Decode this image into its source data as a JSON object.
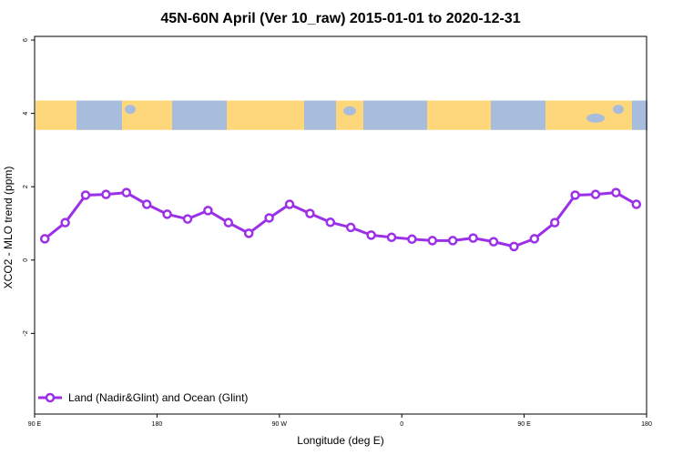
{
  "chart_data": {
    "type": "line",
    "title": "45N-60N April (Ver 10_raw)   2015-01-01 to 2020-12-31",
    "xlabel": "Longitude (deg E)",
    "ylabel": "XCO2 - MLO trend (ppm)",
    "x_ticks": [
      "90 E",
      "180",
      "90 W",
      "0",
      "90 E",
      "180"
    ],
    "x_tick_values": [
      90,
      180,
      270,
      360,
      450,
      540
    ],
    "xlim": [
      90,
      540
    ],
    "y_ticks": [
      "-2",
      "0",
      "2",
      "4",
      "6"
    ],
    "y_tick_values": [
      -2,
      0,
      2,
      4,
      6
    ],
    "ylim": [
      -4.2,
      6.1
    ],
    "grid": false,
    "legend_position": "bottom-left",
    "map_band": {
      "y_range": [
        3.55,
        4.35
      ],
      "land_color": "#fdd77a",
      "ocean_color": "#a8bcdc"
    },
    "series": [
      {
        "name": "Land (Nadir&Glint) and Ocean (Glint)",
        "color": "#9b30e8",
        "x": [
          97.5,
          112.5,
          127.5,
          142.5,
          157.5,
          172.5,
          187.5,
          202.5,
          217.5,
          232.5,
          247.5,
          262.5,
          277.5,
          292.5,
          307.5,
          322.5,
          337.5,
          352.5,
          367.5,
          382.5,
          397.5,
          412.5,
          427.5,
          442.5,
          457.5,
          472.5,
          487.5,
          502.5,
          517.5,
          532.5
        ],
        "y": [
          0.58,
          1.02,
          1.77,
          1.79,
          1.84,
          1.52,
          1.25,
          1.12,
          1.35,
          1.02,
          0.73,
          1.15,
          1.52,
          1.27,
          1.03,
          0.89,
          0.68,
          0.62,
          0.57,
          0.53,
          0.53,
          0.6,
          0.5,
          0.37,
          0.58,
          1.02,
          1.77,
          1.79,
          1.84,
          1.52
        ]
      }
    ]
  }
}
